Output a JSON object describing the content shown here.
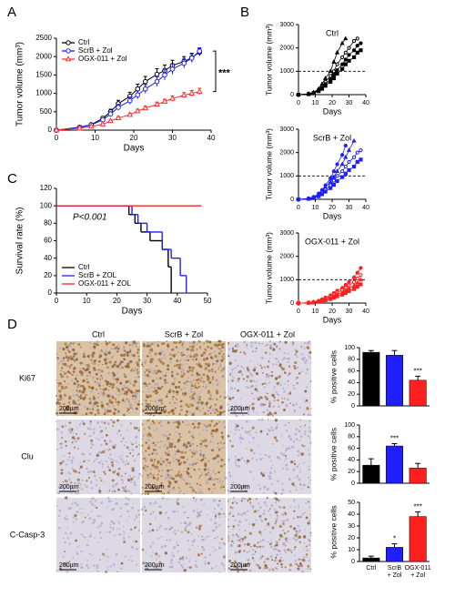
{
  "panel_labels": [
    "A",
    "B",
    "C",
    "D"
  ],
  "micrographs": {
    "column_headers": [
      "Ctrl",
      "ScrB + Zol",
      "OGX-011 + Zol"
    ],
    "row_labels": [
      "Ki67",
      "Clu",
      "C-Casp-3"
    ],
    "scale_bar": "200µm"
  },
  "chart_data": [
    {
      "type": "line",
      "xlabel": "Days",
      "ylabel": "Tumor volume (mm³)",
      "xlim": [
        0,
        40
      ],
      "xticks": [
        0,
        10,
        20,
        30,
        40
      ],
      "ylim": [
        0,
        2500
      ],
      "yticks": [
        0,
        500,
        1000,
        1500,
        2000,
        2500
      ],
      "legend": "upper left",
      "annotation": "***",
      "x": [
        0,
        6,
        9,
        12,
        14,
        16,
        19,
        21,
        23,
        26,
        28,
        30,
        33,
        35,
        37
      ],
      "series": [
        {
          "name": "Ctrl",
          "color": "#000000",
          "marker": "circle-open",
          "values": [
            0,
            80,
            150,
            320,
            500,
            720,
            920,
            1120,
            1320,
            1520,
            1620,
            1760,
            1870,
            1970,
            2120
          ],
          "errors": [
            0,
            20,
            30,
            50,
            70,
            90,
            110,
            130,
            140,
            150,
            150,
            140,
            130,
            120,
            100
          ]
        },
        {
          "name": "ScrB + Zol",
          "color": "#1f1fff",
          "marker": "circle-open",
          "values": [
            0,
            70,
            140,
            280,
            440,
            620,
            800,
            960,
            1120,
            1320,
            1500,
            1660,
            1820,
            1960,
            2150
          ],
          "errors": [
            0,
            20,
            30,
            40,
            60,
            80,
            100,
            110,
            120,
            130,
            140,
            140,
            130,
            110,
            90
          ]
        },
        {
          "name": "OGX-011 + Zol",
          "color": "#ff3030",
          "marker": "triangle-open",
          "values": [
            0,
            50,
            100,
            160,
            250,
            330,
            420,
            520,
            600,
            700,
            780,
            860,
            950,
            1000,
            1050
          ],
          "errors": [
            0,
            10,
            20,
            30,
            30,
            40,
            40,
            50,
            50,
            60,
            60,
            70,
            70,
            80,
            90
          ]
        }
      ]
    },
    {
      "type": "line",
      "title": "Ctrl",
      "xlabel": "Days",
      "ylabel": "Tumor volume (mm³)",
      "xlim": [
        0,
        40
      ],
      "xticks": [
        0,
        10,
        20,
        30,
        40
      ],
      "ylim": [
        0,
        3000
      ],
      "yticks": [
        0,
        1000,
        2000,
        3000
      ],
      "reference_line": 1000,
      "x": [
        0,
        6,
        9,
        12,
        14,
        16,
        19,
        21,
        23,
        26,
        28,
        30,
        33,
        35,
        37
      ],
      "series": [
        {
          "color": "#000000",
          "marker": "triangle",
          "values": [
            0,
            40,
            100,
            250,
            450,
            700,
            1000,
            1400,
            1800,
            2200,
            2400,
            null,
            null,
            null,
            null
          ]
        },
        {
          "color": "#000000",
          "marker": "circle-open",
          "values": [
            0,
            30,
            80,
            200,
            350,
            550,
            800,
            1000,
            1300,
            1600,
            1800,
            2000,
            2300,
            2400,
            null
          ]
        },
        {
          "color": "#000000",
          "marker": "circle",
          "values": [
            0,
            30,
            70,
            180,
            300,
            450,
            650,
            850,
            1050,
            1300,
            1500,
            1700,
            1900,
            2100,
            2200
          ]
        },
        {
          "color": "#000000",
          "marker": "square",
          "values": [
            0,
            20,
            60,
            150,
            250,
            380,
            550,
            700,
            900,
            1100,
            1300,
            1450,
            1600,
            1800,
            1900
          ]
        }
      ]
    },
    {
      "type": "line",
      "title": "ScrB + Zol",
      "xlabel": "Days",
      "ylabel": "Tumor volume (mm³)",
      "xlim": [
        0,
        40
      ],
      "xticks": [
        0,
        10,
        20,
        30,
        40
      ],
      "ylim": [
        0,
        3000
      ],
      "yticks": [
        0,
        1000,
        2000,
        3000
      ],
      "reference_line": 1000,
      "x": [
        0,
        6,
        9,
        12,
        14,
        16,
        19,
        21,
        23,
        26,
        28,
        30,
        33,
        35,
        37
      ],
      "series": [
        {
          "color": "#1f1fff",
          "marker": "circle",
          "values": [
            0,
            40,
            100,
            250,
            400,
            600,
            900,
            1200,
            1500,
            1900,
            2300,
            null,
            null,
            null,
            null
          ]
        },
        {
          "color": "#1f1fff",
          "marker": "triangle",
          "values": [
            0,
            30,
            90,
            200,
            350,
            500,
            750,
            950,
            1200,
            1500,
            1800,
            2100,
            2500,
            null,
            null
          ]
        },
        {
          "color": "#1f1fff",
          "marker": "circle-open",
          "values": [
            0,
            30,
            70,
            170,
            280,
            420,
            600,
            800,
            1000,
            1200,
            1400,
            1600,
            1800,
            2000,
            2100
          ]
        },
        {
          "color": "#1f1fff",
          "marker": "square",
          "values": [
            0,
            20,
            50,
            130,
            220,
            330,
            480,
            620,
            780,
            950,
            1100,
            1250,
            1400,
            1600,
            1700
          ]
        }
      ]
    },
    {
      "type": "line",
      "title": "OGX-011 + Zol",
      "xlabel": "Days",
      "ylabel": "Tumor volume (mm³)",
      "xlim": [
        0,
        40
      ],
      "xticks": [
        0,
        10,
        20,
        30,
        40
      ],
      "ylim": [
        0,
        3000
      ],
      "yticks": [
        0,
        1000,
        2000,
        3000
      ],
      "reference_line": 1000,
      "x": [
        0,
        6,
        9,
        12,
        14,
        16,
        19,
        21,
        23,
        26,
        28,
        30,
        33,
        35,
        37
      ],
      "series": [
        {
          "color": "#ff2020",
          "marker": "circle",
          "values": [
            0,
            20,
            50,
            100,
            160,
            240,
            330,
            430,
            530,
            650,
            780,
            900,
            1100,
            1300,
            1500
          ]
        },
        {
          "color": "#ff2020",
          "marker": "circle-open",
          "values": [
            0,
            15,
            40,
            80,
            130,
            200,
            280,
            360,
            450,
            550,
            650,
            760,
            900,
            1050,
            1200
          ]
        },
        {
          "color": "#ff2020",
          "marker": "triangle",
          "values": [
            0,
            10,
            30,
            60,
            100,
            150,
            220,
            290,
            370,
            450,
            540,
            630,
            740,
            860,
            1000
          ]
        },
        {
          "color": "#ff2020",
          "marker": "square",
          "values": [
            0,
            10,
            25,
            50,
            80,
            120,
            170,
            230,
            290,
            360,
            430,
            510,
            600,
            700,
            800
          ]
        }
      ]
    },
    {
      "type": "step",
      "xlabel": "Days",
      "ylabel": "Survival rate (%)",
      "xlim": [
        0,
        50
      ],
      "xticks": [
        0,
        10,
        20,
        30,
        40,
        50
      ],
      "ylim": [
        0,
        120
      ],
      "yticks": [
        0,
        20,
        40,
        60,
        80,
        100,
        120
      ],
      "legend": "lower left",
      "annotation": "P<0.001",
      "series": [
        {
          "name": "Ctrl",
          "color": "#000000",
          "x": [
            0,
            24,
            26,
            28,
            31,
            35,
            37,
            38
          ],
          "values": [
            100,
            90,
            80,
            70,
            60,
            50,
            30,
            0
          ]
        },
        {
          "name": "ScrB + ZOL",
          "color": "#1f1fff",
          "x": [
            0,
            25,
            27,
            30,
            35,
            38,
            41,
            43
          ],
          "values": [
            100,
            90,
            80,
            70,
            50,
            40,
            20,
            0
          ]
        },
        {
          "name": "OGX-011 + ZOL",
          "color": "#ff2020",
          "x": [
            0,
            48
          ],
          "values": [
            100,
            100
          ]
        }
      ]
    },
    {
      "type": "bar",
      "ylabel": "% positive cells",
      "ylim": [
        0,
        100
      ],
      "yticks": [
        0,
        20,
        40,
        60,
        80,
        100
      ],
      "categories": [
        null,
        null,
        null
      ],
      "values": [
        92,
        87,
        44
      ],
      "errors": [
        3,
        8,
        7
      ],
      "colors": [
        "#000000",
        "#1f1fff",
        "#ff2020"
      ],
      "annotations": [
        null,
        null,
        "***"
      ]
    },
    {
      "type": "bar",
      "ylabel": "% positive cells",
      "ylim": [
        0,
        100
      ],
      "yticks": [
        0,
        20,
        40,
        60,
        80,
        100
      ],
      "categories": [
        null,
        null,
        null
      ],
      "values": [
        31,
        64,
        26
      ],
      "errors": [
        11,
        4,
        8
      ],
      "colors": [
        "#000000",
        "#1f1fff",
        "#ff2020"
      ],
      "annotations": [
        null,
        "***",
        null
      ]
    },
    {
      "type": "bar",
      "ylabel": "% positive cells",
      "ylim": [
        0,
        50
      ],
      "yticks": [
        0,
        10,
        20,
        30,
        40,
        50
      ],
      "categories": [
        "Ctrl",
        "ScrB\n+ Zol",
        "OGX-011\n+ Zol"
      ],
      "values": [
        3,
        12,
        38
      ],
      "errors": [
        1.5,
        3,
        4
      ],
      "colors": [
        "#000000",
        "#1f1fff",
        "#ff2020"
      ],
      "annotations": [
        null,
        "*",
        "***"
      ]
    }
  ]
}
